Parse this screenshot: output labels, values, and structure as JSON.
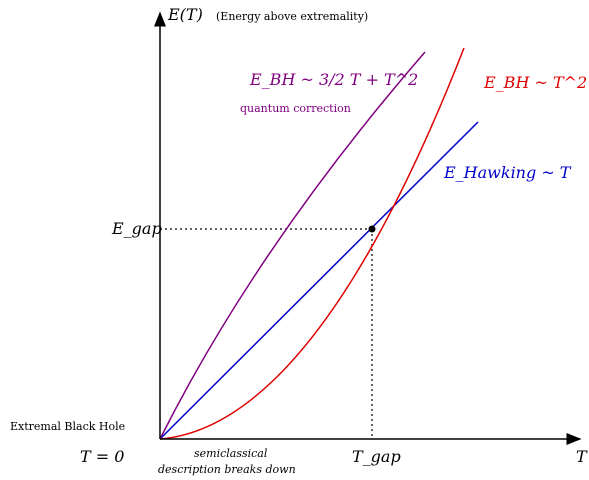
{
  "axes": {
    "y_label_main": "E(T)",
    "y_label_note": "(Energy above extremality)",
    "x_label": "T",
    "origin_label_top": "Extremal Black Hole",
    "origin_label_bottom": "T = 0"
  },
  "marks": {
    "y_gap_label": "E_gap",
    "x_gap_label": "T_gap",
    "footnote_line1": "semiclassical",
    "footnote_line2": "description breaks down"
  },
  "curves": {
    "quantum": {
      "label": "E_BH ~ 3/2 T + T^2",
      "sublabel": "quantum correction",
      "color": "#800080"
    },
    "black_hole": {
      "label": "E_BH ~ T^2",
      "color": "#e00000"
    },
    "hawking": {
      "label": "E_Hawking ~ T",
      "color": "#0000cc"
    }
  },
  "colors": {
    "axis": "#000000",
    "guide": "#000000",
    "point": "#000000"
  }
}
